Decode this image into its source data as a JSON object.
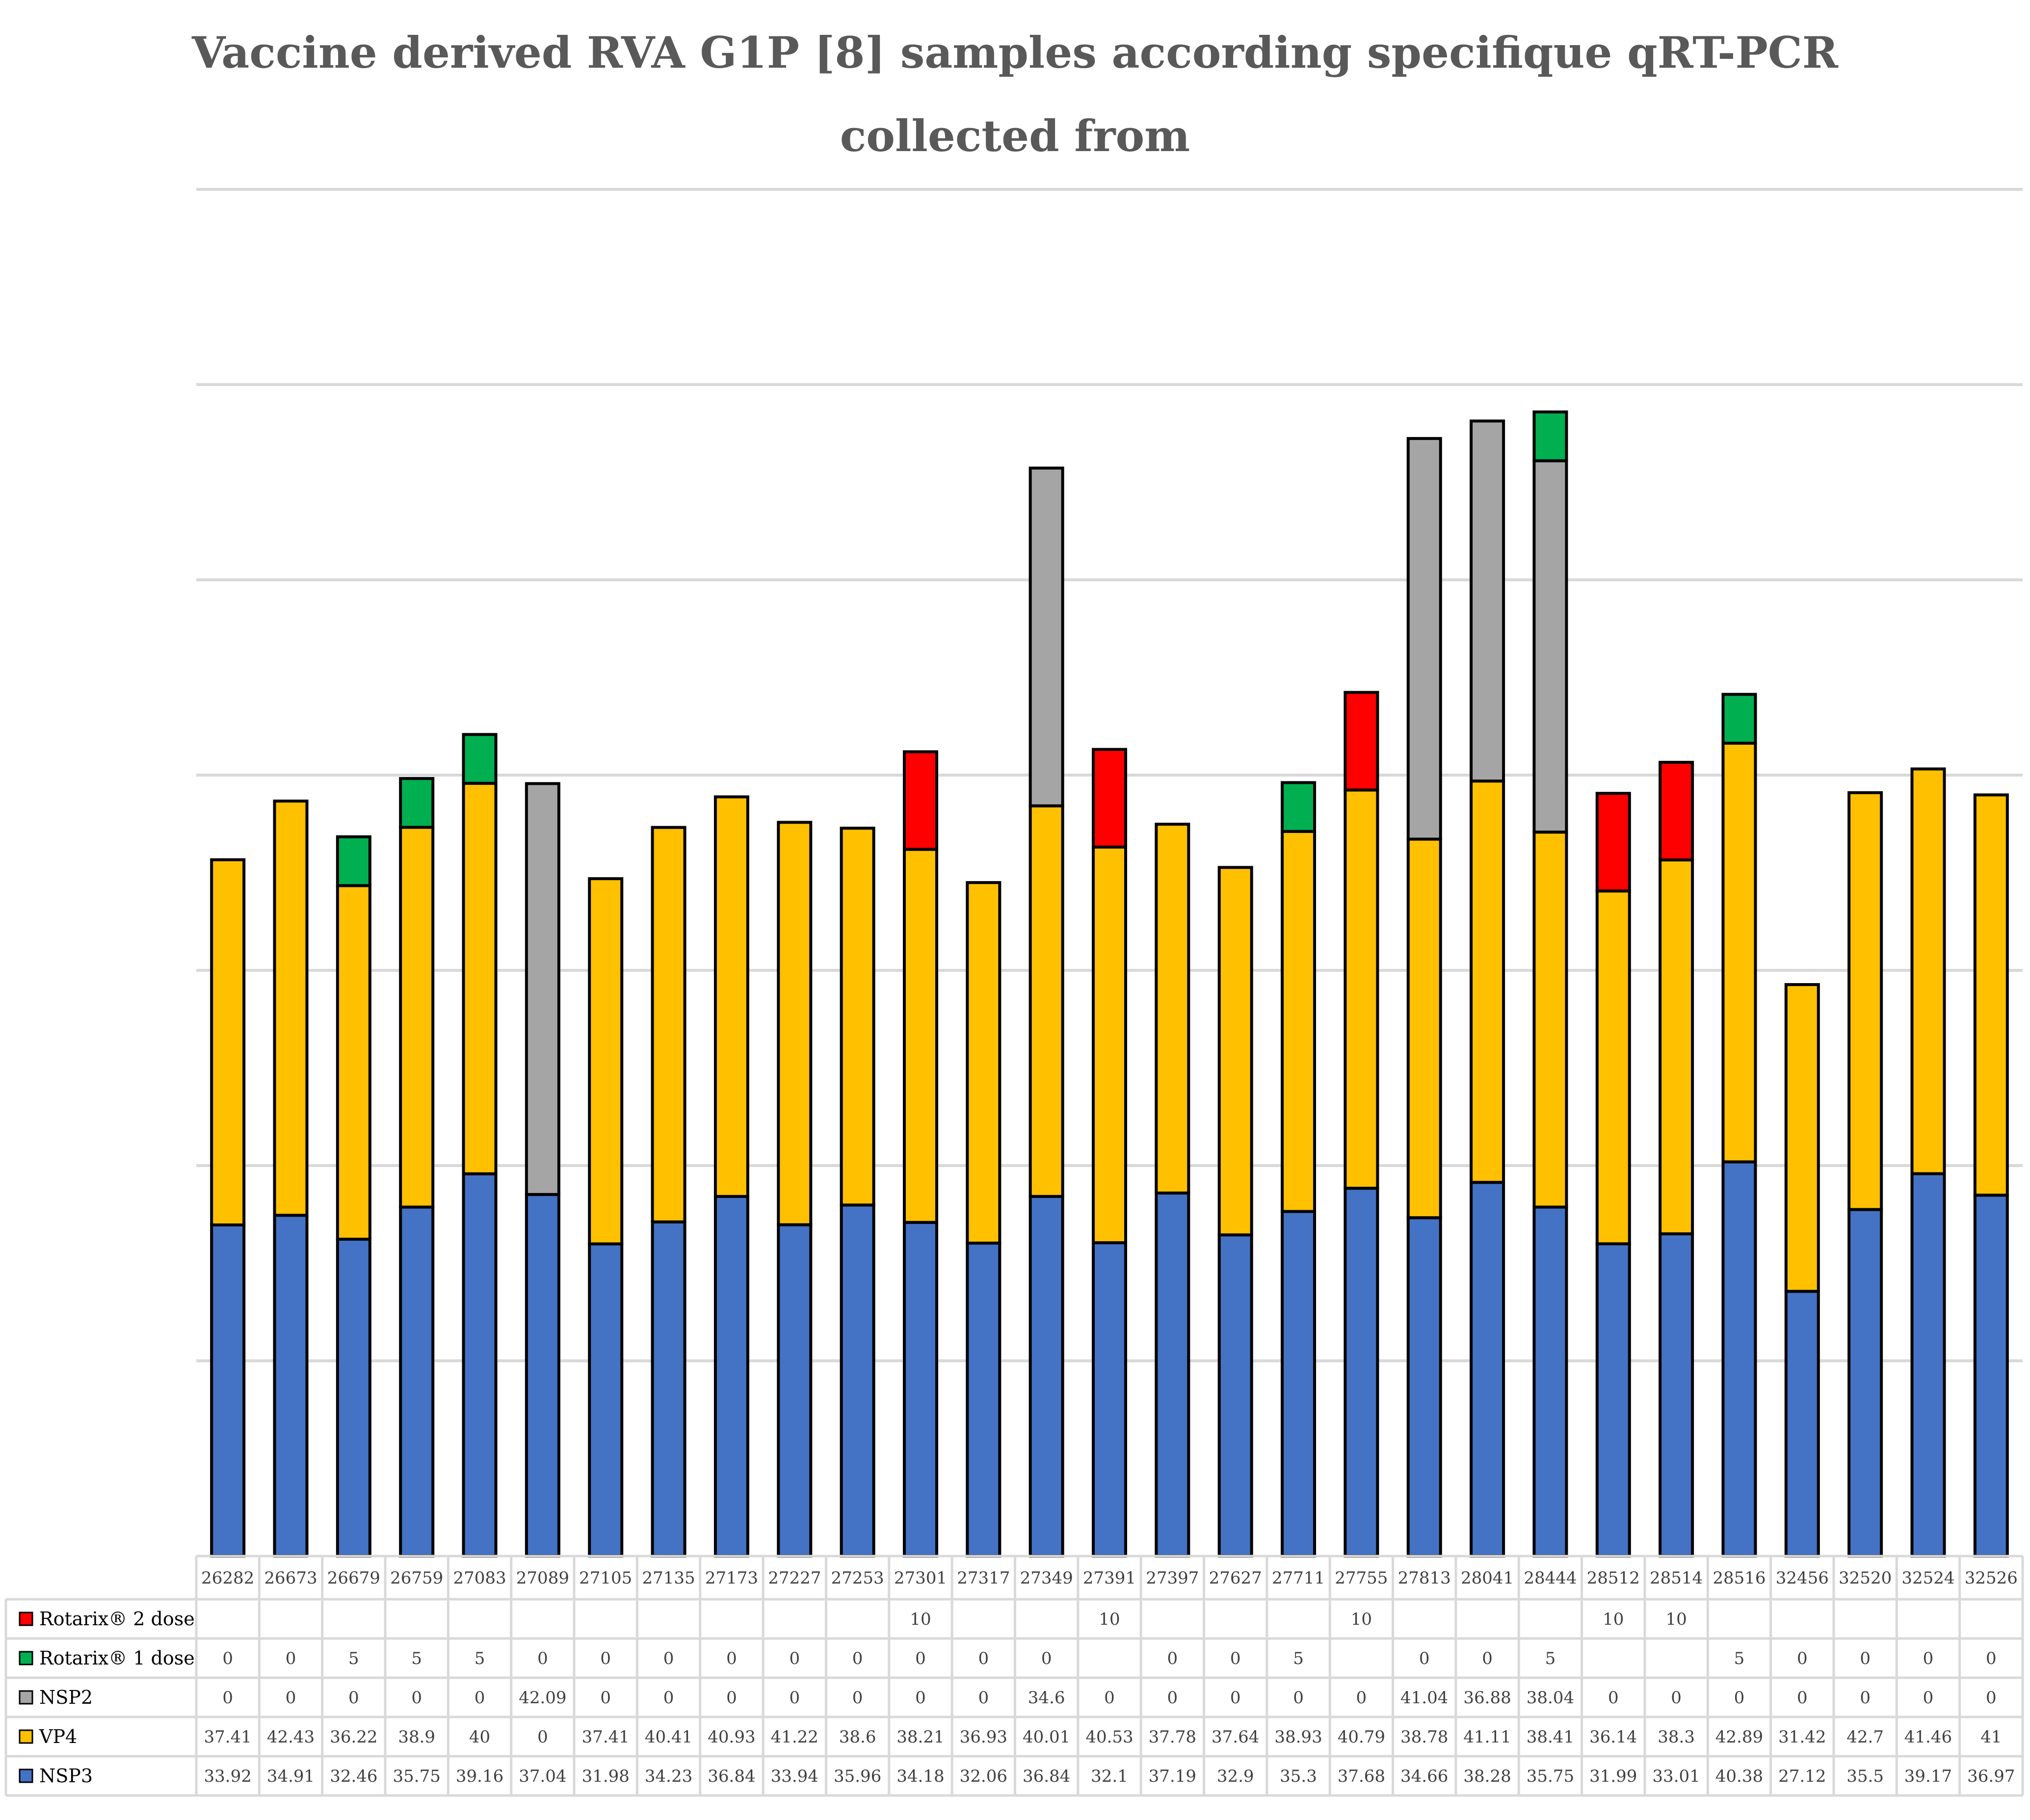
{
  "chart_data": {
    "type": "bar",
    "stacked": true,
    "title_line1": "Vaccine derived RVA G1P [8] samples according specifique qRT-PCR",
    "title_line2": "collected from",
    "xlabel": "",
    "ylabel": "",
    "ylim": [
      0,
      140
    ],
    "grid": true,
    "gridline_values": [
      20,
      40,
      60,
      80,
      100,
      120,
      140
    ],
    "categories": [
      "26282",
      "26673",
      "26679",
      "26759",
      "27083",
      "27089",
      "27105",
      "27135",
      "27173",
      "27227",
      "27253",
      "27301",
      "27317",
      "27349",
      "27391",
      "27397",
      "27627",
      "27711",
      "27755",
      "27813",
      "28041",
      "28444",
      "28512",
      "28514",
      "28516",
      "32456",
      "32520",
      "32524",
      "32526"
    ],
    "series": [
      {
        "name": "NSP3",
        "color": "#4472C4",
        "values": [
          33.92,
          34.91,
          32.46,
          35.75,
          39.16,
          37.04,
          31.98,
          34.23,
          36.84,
          33.94,
          35.96,
          34.18,
          32.06,
          36.84,
          32.1,
          37.19,
          32.9,
          35.3,
          37.68,
          34.66,
          38.28,
          35.75,
          31.99,
          33.01,
          40.38,
          27.12,
          35.5,
          39.17,
          36.97
        ]
      },
      {
        "name": "VP4",
        "color": "#FFC000",
        "values": [
          37.41,
          42.43,
          36.22,
          38.9,
          40,
          0,
          37.41,
          40.41,
          40.93,
          41.22,
          38.6,
          38.21,
          36.93,
          40.01,
          40.53,
          37.78,
          37.64,
          38.93,
          40.79,
          38.78,
          41.11,
          38.41,
          36.14,
          38.3,
          42.89,
          31.42,
          42.7,
          41.46,
          41
        ]
      },
      {
        "name": "NSP2",
        "color": "#A5A5A5",
        "values": [
          0,
          0,
          0,
          0,
          0,
          42.09,
          0,
          0,
          0,
          0,
          0,
          0,
          0,
          34.6,
          0,
          0,
          0,
          0,
          0,
          41.04,
          36.88,
          38.04,
          0,
          0,
          0,
          0,
          0,
          0,
          0
        ]
      },
      {
        "name": "Rotarix® 1 dose",
        "color": "#00B050",
        "values": [
          0,
          0,
          5,
          5,
          5,
          0,
          0,
          0,
          0,
          0,
          0,
          0,
          0,
          0,
          null,
          0,
          0,
          5,
          null,
          0,
          0,
          5,
          null,
          null,
          5,
          0,
          0,
          0,
          0
        ]
      },
      {
        "name": "Rotarix® 2 dose",
        "color": "#FF0000",
        "values": [
          null,
          null,
          null,
          null,
          null,
          null,
          null,
          null,
          null,
          null,
          null,
          10,
          null,
          null,
          10,
          null,
          null,
          null,
          10,
          null,
          null,
          null,
          10,
          10,
          null,
          null,
          null,
          null,
          null
        ]
      }
    ],
    "table_row_order": [
      "Rotarix® 2 dose",
      "Rotarix® 1 dose",
      "NSP2",
      "VP4",
      "NSP3"
    ]
  }
}
